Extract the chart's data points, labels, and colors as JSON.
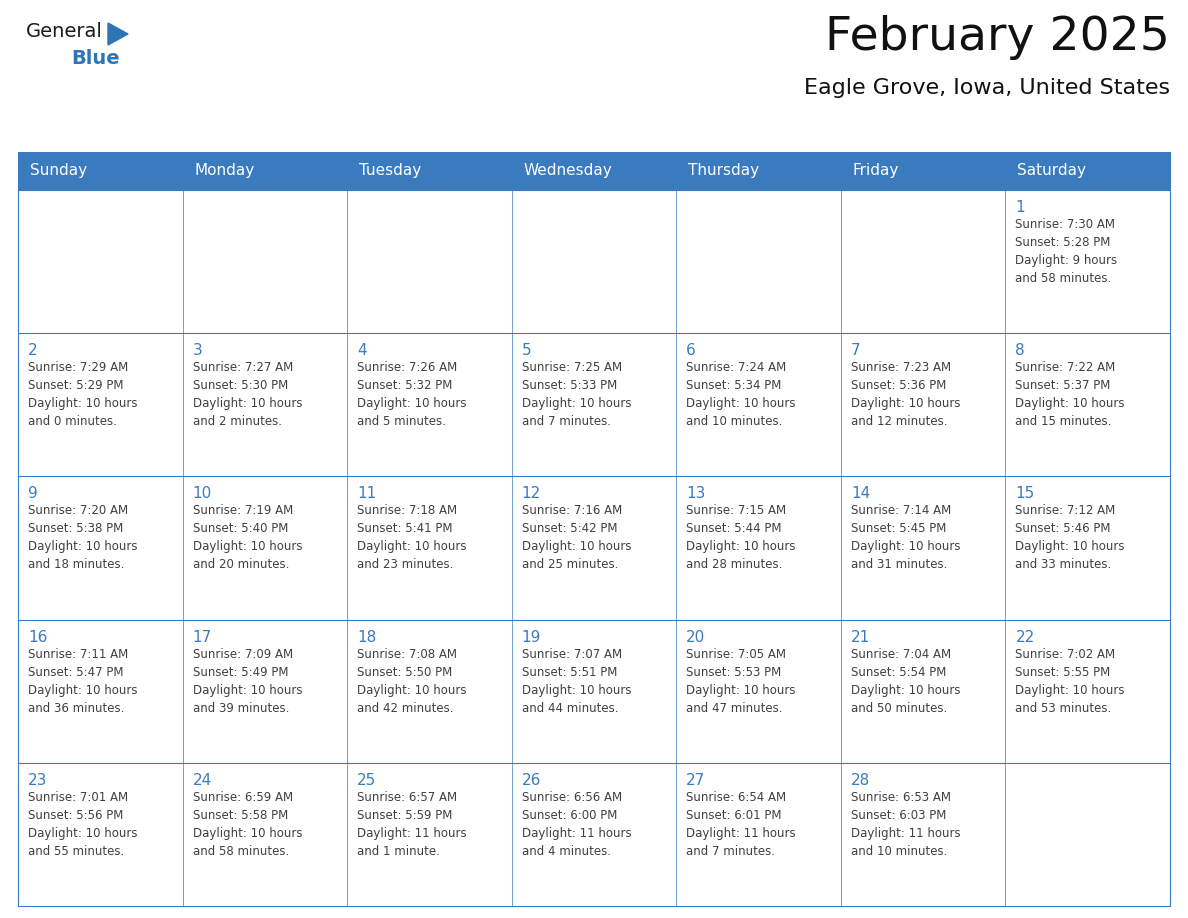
{
  "title": "February 2025",
  "subtitle": "Eagle Grove, Iowa, United States",
  "header_bg_color": "#3a7bbf",
  "header_text_color": "#ffffff",
  "cell_border_color": "#4a86c8",
  "row_border_color": "#3a7bbf",
  "day_number_color": "#3a7bbf",
  "info_text_color": "#404040",
  "bg_color": "#ffffff",
  "cell_bg_color": "#f9f9f9",
  "days_of_week": [
    "Sunday",
    "Monday",
    "Tuesday",
    "Wednesday",
    "Thursday",
    "Friday",
    "Saturday"
  ],
  "weeks": [
    [
      {
        "day": "",
        "info": ""
      },
      {
        "day": "",
        "info": ""
      },
      {
        "day": "",
        "info": ""
      },
      {
        "day": "",
        "info": ""
      },
      {
        "day": "",
        "info": ""
      },
      {
        "day": "",
        "info": ""
      },
      {
        "day": "1",
        "info": "Sunrise: 7:30 AM\nSunset: 5:28 PM\nDaylight: 9 hours\nand 58 minutes."
      }
    ],
    [
      {
        "day": "2",
        "info": "Sunrise: 7:29 AM\nSunset: 5:29 PM\nDaylight: 10 hours\nand 0 minutes."
      },
      {
        "day": "3",
        "info": "Sunrise: 7:27 AM\nSunset: 5:30 PM\nDaylight: 10 hours\nand 2 minutes."
      },
      {
        "day": "4",
        "info": "Sunrise: 7:26 AM\nSunset: 5:32 PM\nDaylight: 10 hours\nand 5 minutes."
      },
      {
        "day": "5",
        "info": "Sunrise: 7:25 AM\nSunset: 5:33 PM\nDaylight: 10 hours\nand 7 minutes."
      },
      {
        "day": "6",
        "info": "Sunrise: 7:24 AM\nSunset: 5:34 PM\nDaylight: 10 hours\nand 10 minutes."
      },
      {
        "day": "7",
        "info": "Sunrise: 7:23 AM\nSunset: 5:36 PM\nDaylight: 10 hours\nand 12 minutes."
      },
      {
        "day": "8",
        "info": "Sunrise: 7:22 AM\nSunset: 5:37 PM\nDaylight: 10 hours\nand 15 minutes."
      }
    ],
    [
      {
        "day": "9",
        "info": "Sunrise: 7:20 AM\nSunset: 5:38 PM\nDaylight: 10 hours\nand 18 minutes."
      },
      {
        "day": "10",
        "info": "Sunrise: 7:19 AM\nSunset: 5:40 PM\nDaylight: 10 hours\nand 20 minutes."
      },
      {
        "day": "11",
        "info": "Sunrise: 7:18 AM\nSunset: 5:41 PM\nDaylight: 10 hours\nand 23 minutes."
      },
      {
        "day": "12",
        "info": "Sunrise: 7:16 AM\nSunset: 5:42 PM\nDaylight: 10 hours\nand 25 minutes."
      },
      {
        "day": "13",
        "info": "Sunrise: 7:15 AM\nSunset: 5:44 PM\nDaylight: 10 hours\nand 28 minutes."
      },
      {
        "day": "14",
        "info": "Sunrise: 7:14 AM\nSunset: 5:45 PM\nDaylight: 10 hours\nand 31 minutes."
      },
      {
        "day": "15",
        "info": "Sunrise: 7:12 AM\nSunset: 5:46 PM\nDaylight: 10 hours\nand 33 minutes."
      }
    ],
    [
      {
        "day": "16",
        "info": "Sunrise: 7:11 AM\nSunset: 5:47 PM\nDaylight: 10 hours\nand 36 minutes."
      },
      {
        "day": "17",
        "info": "Sunrise: 7:09 AM\nSunset: 5:49 PM\nDaylight: 10 hours\nand 39 minutes."
      },
      {
        "day": "18",
        "info": "Sunrise: 7:08 AM\nSunset: 5:50 PM\nDaylight: 10 hours\nand 42 minutes."
      },
      {
        "day": "19",
        "info": "Sunrise: 7:07 AM\nSunset: 5:51 PM\nDaylight: 10 hours\nand 44 minutes."
      },
      {
        "day": "20",
        "info": "Sunrise: 7:05 AM\nSunset: 5:53 PM\nDaylight: 10 hours\nand 47 minutes."
      },
      {
        "day": "21",
        "info": "Sunrise: 7:04 AM\nSunset: 5:54 PM\nDaylight: 10 hours\nand 50 minutes."
      },
      {
        "day": "22",
        "info": "Sunrise: 7:02 AM\nSunset: 5:55 PM\nDaylight: 10 hours\nand 53 minutes."
      }
    ],
    [
      {
        "day": "23",
        "info": "Sunrise: 7:01 AM\nSunset: 5:56 PM\nDaylight: 10 hours\nand 55 minutes."
      },
      {
        "day": "24",
        "info": "Sunrise: 6:59 AM\nSunset: 5:58 PM\nDaylight: 10 hours\nand 58 minutes."
      },
      {
        "day": "25",
        "info": "Sunrise: 6:57 AM\nSunset: 5:59 PM\nDaylight: 11 hours\nand 1 minute."
      },
      {
        "day": "26",
        "info": "Sunrise: 6:56 AM\nSunset: 6:00 PM\nDaylight: 11 hours\nand 4 minutes."
      },
      {
        "day": "27",
        "info": "Sunrise: 6:54 AM\nSunset: 6:01 PM\nDaylight: 11 hours\nand 7 minutes."
      },
      {
        "day": "28",
        "info": "Sunrise: 6:53 AM\nSunset: 6:03 PM\nDaylight: 11 hours\nand 10 minutes."
      },
      {
        "day": "",
        "info": ""
      }
    ]
  ],
  "logo_general_color": "#1a1a1a",
  "logo_blue_color": "#2e75b6",
  "logo_triangle_color": "#2e75b6",
  "logo_fontsize_general": 14,
  "logo_fontsize_blue": 14,
  "title_fontsize": 34,
  "subtitle_fontsize": 16,
  "header_fontsize": 11,
  "day_num_fontsize": 11,
  "info_fontsize": 8.5
}
